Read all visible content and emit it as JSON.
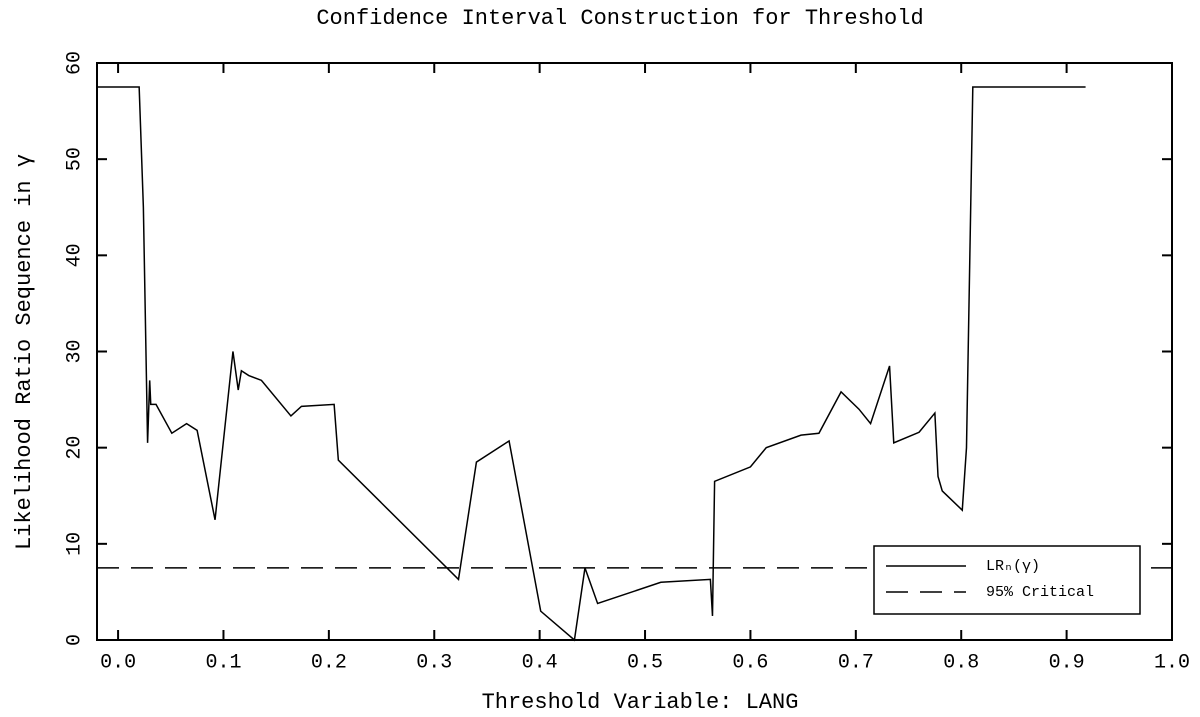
{
  "chart_data": {
    "type": "line",
    "title": "Confidence Interval Construction for Threshold",
    "xlabel": "Threshold Variable: LANG",
    "ylabel": "Likelihood Ratio Sequence in γ",
    "xlim": [
      -0.02,
      1.0
    ],
    "ylim": [
      0,
      60
    ],
    "xticks": [
      {
        "value": 0,
        "label": "0.0"
      },
      0.1,
      0.2,
      0.3,
      0.4,
      0.5,
      0.6,
      0.7,
      0.8,
      0.9,
      {
        "value": 1,
        "label": "1.0"
      }
    ],
    "yticks": [
      0,
      10,
      20,
      30,
      40,
      50,
      60
    ],
    "legend": "lower right",
    "series": [
      {
        "name": "LRₙ(γ)",
        "color": "#000000",
        "style": "solid",
        "x": [
          -0.02,
          0.02,
          0.024,
          0.028,
          0.03,
          0.031,
          0.036,
          0.051,
          0.065,
          0.075,
          0.092,
          0.109,
          0.114,
          0.117,
          0.124,
          0.136,
          0.164,
          0.174,
          0.205,
          0.209,
          0.323,
          0.34,
          0.371,
          0.401,
          0.433,
          0.443,
          0.455,
          0.515,
          0.562,
          0.564,
          0.566,
          0.6,
          0.615,
          0.648,
          0.665,
          0.686,
          0.703,
          0.714,
          0.732,
          0.736,
          0.76,
          0.775,
          0.778,
          0.782,
          0.801,
          0.805,
          0.811,
          0.918
        ],
        "values": [
          57.5,
          57.5,
          45,
          20.5,
          27,
          24.5,
          24.5,
          21.5,
          22.5,
          21.8,
          12.5,
          30,
          26,
          28,
          27.5,
          27,
          23.3,
          24.3,
          24.5,
          18.7,
          6.3,
          18.5,
          20.7,
          3,
          0,
          7.5,
          3.8,
          6,
          6.3,
          2.5,
          16.5,
          18,
          20,
          21.3,
          21.5,
          25.8,
          24,
          22.5,
          28.5,
          20.5,
          21.6,
          23.6,
          17,
          15.5,
          13.5,
          20,
          57.5,
          57.5
        ]
      },
      {
        "name": "95% Critical",
        "color": "#000000",
        "style": "dashed",
        "x": [
          -0.02,
          1.0
        ],
        "values": [
          7.5,
          7.5
        ]
      }
    ]
  }
}
